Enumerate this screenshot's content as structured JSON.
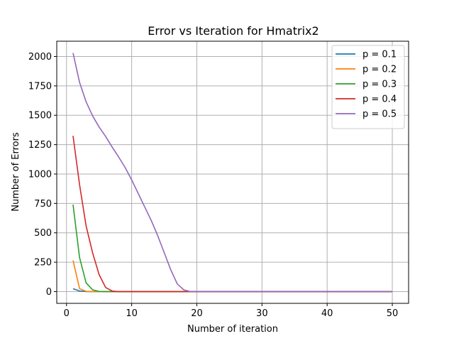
{
  "chart_data": {
    "type": "line",
    "title": "Error vs Iteration for Hmatrix2",
    "xlabel": "Number of iteration",
    "ylabel": "Number of Errors",
    "xlim": [
      -1.5,
      52.5
    ],
    "ylim": [
      -100,
      2130
    ],
    "xticks": [
      0,
      10,
      20,
      30,
      40,
      50
    ],
    "yticks": [
      0,
      250,
      500,
      750,
      1000,
      1250,
      1500,
      1750,
      2000
    ],
    "grid": true,
    "legend_position": "top-right",
    "series": [
      {
        "name": "p = 0.1",
        "color": "#1f77b4",
        "points": [
          [
            1,
            25
          ],
          [
            2,
            5
          ],
          [
            3,
            0
          ],
          [
            50,
            0
          ]
        ]
      },
      {
        "name": "p = 0.2",
        "color": "#ff7f0e",
        "points": [
          [
            1,
            265
          ],
          [
            2,
            25
          ],
          [
            3,
            2
          ],
          [
            4,
            0
          ],
          [
            50,
            0
          ]
        ]
      },
      {
        "name": "p = 0.3",
        "color": "#2ca02c",
        "points": [
          [
            1,
            740
          ],
          [
            2,
            290
          ],
          [
            3,
            75
          ],
          [
            4,
            15
          ],
          [
            5,
            2
          ],
          [
            6,
            0
          ],
          [
            50,
            0
          ]
        ]
      },
      {
        "name": "p = 0.4",
        "color": "#d62728",
        "points": [
          [
            1,
            1325
          ],
          [
            2,
            910
          ],
          [
            3,
            560
          ],
          [
            4,
            330
          ],
          [
            5,
            145
          ],
          [
            6,
            35
          ],
          [
            7,
            5
          ],
          [
            8,
            0
          ],
          [
            50,
            0
          ]
        ]
      },
      {
        "name": "p = 0.5",
        "color": "#9467bd",
        "points": [
          [
            1,
            2030
          ],
          [
            2,
            1780
          ],
          [
            3,
            1615
          ],
          [
            4,
            1495
          ],
          [
            5,
            1400
          ],
          [
            6,
            1320
          ],
          [
            7,
            1230
          ],
          [
            8,
            1145
          ],
          [
            9,
            1055
          ],
          [
            10,
            950
          ],
          [
            11,
            835
          ],
          [
            12,
            720
          ],
          [
            13,
            605
          ],
          [
            14,
            475
          ],
          [
            15,
            330
          ],
          [
            16,
            185
          ],
          [
            17,
            65
          ],
          [
            18,
            15
          ],
          [
            19,
            0
          ],
          [
            50,
            0
          ]
        ]
      }
    ]
  }
}
